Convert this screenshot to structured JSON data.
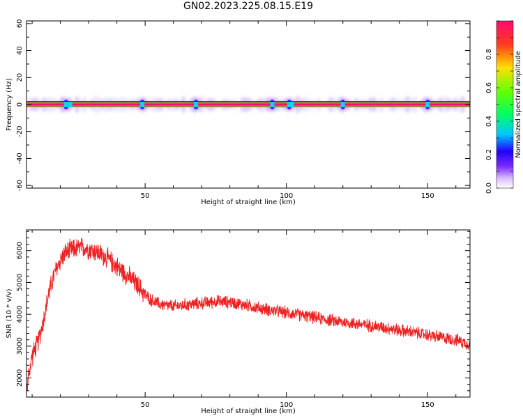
{
  "title": "GN02.2023.225.08.15.E19",
  "chart_data": [
    {
      "type": "heatmap",
      "name": "spectrogram",
      "xlabel": "Height of straight line (km)",
      "ylabel": "Frequency (Hz)",
      "xlim": [
        8,
        165
      ],
      "ylim": [
        -62,
        62
      ],
      "xticks": [
        50,
        100,
        150
      ],
      "yticks": [
        -60,
        -40,
        -20,
        0,
        20,
        40,
        60
      ],
      "band_center_hz": 0,
      "band_halfwidth_hz": 2,
      "strong_blobs_x_km": [
        22,
        49,
        68,
        95,
        101,
        120,
        150
      ],
      "colorbar": {
        "label": "Normalized spectral amplitude",
        "range": [
          0,
          1
        ],
        "ticks": [
          0.0,
          0.2,
          0.4,
          0.6,
          0.8
        ],
        "colors": [
          "#ffffff",
          "#b46bff",
          "#3a00ff",
          "#00d7ff",
          "#00ff33",
          "#b8ff00",
          "#ffd000",
          "#ff3b1f",
          "#ff0d67"
        ]
      }
    },
    {
      "type": "line",
      "name": "snr",
      "xlabel": "Height of straight line (km)",
      "ylabel": "SNR (10 * v/v)",
      "xlim": [
        8,
        165
      ],
      "ylim": [
        1400,
        6650
      ],
      "xticks": [
        50,
        100,
        150
      ],
      "yticks": [
        2000,
        3000,
        4000,
        5000,
        6000
      ],
      "color": "#ee2222",
      "x": [
        8,
        9,
        10,
        12,
        14,
        16,
        18,
        20,
        22,
        25,
        28,
        30,
        33,
        36,
        40,
        44,
        48,
        50,
        53,
        56,
        60,
        65,
        70,
        75,
        80,
        85,
        90,
        95,
        100,
        105,
        110,
        115,
        120,
        125,
        130,
        135,
        140,
        145,
        150,
        155,
        160,
        165
      ],
      "y": [
        1600,
        2200,
        2700,
        3100,
        3800,
        4700,
        5300,
        5700,
        5950,
        6050,
        6100,
        6050,
        5950,
        5800,
        5500,
        5200,
        4850,
        4600,
        4400,
        4300,
        4250,
        4300,
        4350,
        4400,
        4380,
        4300,
        4200,
        4120,
        4050,
        3980,
        3900,
        3820,
        3760,
        3700,
        3640,
        3580,
        3500,
        3430,
        3350,
        3270,
        3200,
        3050
      ]
    }
  ]
}
